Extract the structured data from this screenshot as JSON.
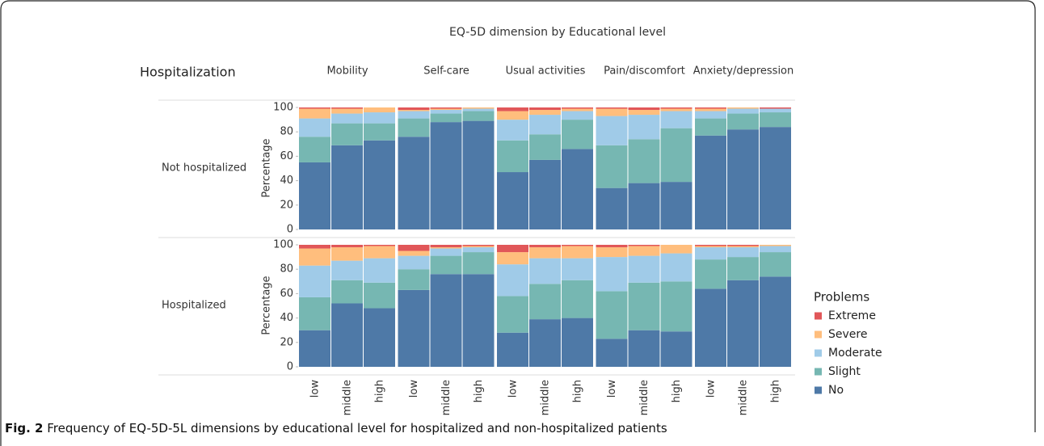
{
  "chart_data": {
    "type": "stacked_bar",
    "title": "EQ-5D dimension by Educational level",
    "row_title": "Hospitalization",
    "rows": [
      "Not hospitalized",
      "Hospitalized"
    ],
    "columns": [
      "Mobility",
      "Self-care",
      "Usual activities",
      "Pain/discomfort",
      "Anxiety/depression"
    ],
    "categories": [
      "low",
      "middle",
      "high"
    ],
    "ylabel": "Percentage",
    "ylim": [
      0,
      100
    ],
    "yticks": [
      0,
      20,
      40,
      60,
      80,
      100
    ],
    "legend_title": "Problems",
    "series": [
      {
        "name": "No",
        "color": "#4e79a7",
        "values": [
          [
            [
              55,
              69,
              73
            ],
            [
              76,
              88,
              89
            ],
            [
              47,
              57,
              66
            ],
            [
              34,
              38,
              39
            ],
            [
              77,
              82,
              84
            ]
          ],
          [
            [
              30,
              52,
              48
            ],
            [
              63,
              76,
              76
            ],
            [
              28,
              39,
              40
            ],
            [
              23,
              30,
              29
            ],
            [
              64,
              71,
              74
            ]
          ]
        ]
      },
      {
        "name": "Slight",
        "color": "#76b7b2",
        "values": [
          [
            [
              21,
              18,
              14
            ],
            [
              15,
              7,
              8
            ],
            [
              26,
              21,
              24
            ],
            [
              35,
              36,
              44
            ],
            [
              14,
              13,
              12
            ]
          ],
          [
            [
              27,
              19,
              21
            ],
            [
              17,
              15,
              18
            ],
            [
              30,
              29,
              31
            ],
            [
              39,
              39,
              41
            ],
            [
              24,
              19,
              20
            ]
          ]
        ]
      },
      {
        "name": "Moderate",
        "color": "#a0cbe8",
        "values": [
          [
            [
              15,
              8,
              9
            ],
            [
              6,
              3,
              2
            ],
            [
              17,
              16,
              7
            ],
            [
              24,
              20,
              14
            ],
            [
              6,
              4,
              3
            ]
          ],
          [
            [
              26,
              16,
              20
            ],
            [
              11,
              6,
              4
            ],
            [
              26,
              21,
              18
            ],
            [
              28,
              22,
              23
            ],
            [
              10,
              8,
              5
            ]
          ]
        ]
      },
      {
        "name": "Severe",
        "color": "#ffbe7d",
        "values": [
          [
            [
              8,
              4,
              4
            ],
            [
              1,
              1,
              1
            ],
            [
              7,
              4,
              2
            ],
            [
              6,
              4,
              2
            ],
            [
              2,
              1,
              0
            ]
          ],
          [
            [
              14,
              11,
              10
            ],
            [
              4,
              1,
              1
            ],
            [
              10,
              9,
              10
            ],
            [
              8,
              8,
              7
            ],
            [
              1,
              1,
              1
            ]
          ]
        ]
      },
      {
        "name": "Extreme",
        "color": "#e15759",
        "values": [
          [
            [
              1,
              1,
              0
            ],
            [
              2,
              1,
              0
            ],
            [
              3,
              2,
              1
            ],
            [
              1,
              2,
              1
            ],
            [
              1,
              0,
              1
            ]
          ],
          [
            [
              3,
              2,
              1
            ],
            [
              5,
              2,
              1
            ],
            [
              6,
              2,
              1
            ],
            [
              2,
              1,
              0
            ],
            [
              1,
              1,
              0
            ]
          ]
        ]
      }
    ],
    "caption": {
      "label": "Fig. 2",
      "text": "Frequency of EQ-5D-5L dimensions by educational level for hospitalized and non-hospitalized patients"
    }
  }
}
